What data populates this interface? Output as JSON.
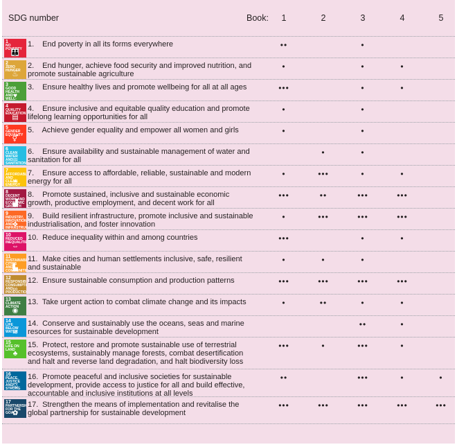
{
  "header": {
    "sdg_label": "SDG number",
    "book_label": "Book:",
    "books": [
      "1",
      "2",
      "3",
      "4",
      "5"
    ]
  },
  "dot_symbol": "•",
  "rows": [
    {
      "num": "1.",
      "text": "End poverty in all its forms everywhere",
      "tile_label": "NO POVERTY",
      "color": "#e5243b",
      "icon": "people-icon",
      "glyph": "👪",
      "counts": [
        2,
        0,
        1,
        0,
        0
      ]
    },
    {
      "num": "2.",
      "text": "End hunger, achieve food security and improved nutrition, and promote sustainable agriculture",
      "tile_label": "ZERO HUNGER",
      "color": "#dda63a",
      "icon": "bowl-icon",
      "glyph": "♨",
      "counts": [
        1,
        0,
        1,
        1,
        0
      ]
    },
    {
      "num": "3.",
      "text": "Ensure healthy lives and promote wellbeing for all at all ages",
      "tile_label": "GOOD HEALTH AND WELL-BEING",
      "color": "#4c9f38",
      "icon": "heartbeat-icon",
      "glyph": "♥",
      "counts": [
        3,
        0,
        1,
        1,
        0
      ]
    },
    {
      "num": "4.",
      "text": "Ensure inclusive and equitable quality education and promote lifelong learning opportunities for all",
      "tile_label": "QUALITY EDUCATION",
      "color": "#c5192d",
      "icon": "book-icon",
      "glyph": "▤",
      "counts": [
        1,
        0,
        1,
        0,
        0
      ]
    },
    {
      "num": "5.",
      "text": "Achieve gender equality and empower all women and girls",
      "tile_label": "GENDER EQUALITY",
      "color": "#ff3a21",
      "icon": "gender-icon",
      "glyph": "⚥",
      "counts": [
        1,
        0,
        1,
        0,
        0
      ]
    },
    {
      "num": "6.",
      "text": "Ensure availability and sustainable management of water and sanitation for all",
      "tile_label": "CLEAN WATER AND SANITATION",
      "color": "#26bde2",
      "icon": "water-icon",
      "glyph": "♒",
      "counts": [
        0,
        1,
        1,
        0,
        0
      ]
    },
    {
      "num": "7.",
      "text": "Ensure access to affordable, reliable, sustainable and modern energy for all",
      "tile_label": "AFFORDABLE AND CLEAN ENERGY",
      "color": "#fcc30b",
      "icon": "sun-icon",
      "glyph": "☀",
      "counts": [
        1,
        3,
        1,
        1,
        0
      ]
    },
    {
      "num": "8.",
      "text": "Promote sustained, inclusive and sustainable economic growth, productive employment, and decent work for all",
      "tile_label": "DECENT WORK AND ECONOMIC GROWTH",
      "color": "#a21942",
      "icon": "growth-icon",
      "glyph": "▟",
      "counts": [
        3,
        2,
        3,
        3,
        0
      ]
    },
    {
      "num": "9.",
      "text": "Build resilient infrastructure, promote inclusive and sustainable industrialisation, and foster innovation",
      "tile_label": "INDUSTRY, INNOVATION AND INFRASTRUCTURE",
      "color": "#fd6925",
      "icon": "cubes-icon",
      "glyph": "❖",
      "counts": [
        1,
        3,
        3,
        3,
        0
      ]
    },
    {
      "num": "10.",
      "text": "Reduce inequality within and among countries",
      "tile_label": "REDUCED INEQUALITIES",
      "color": "#dd1367",
      "icon": "equals-icon",
      "glyph": "⇔",
      "counts": [
        3,
        0,
        1,
        1,
        0
      ]
    },
    {
      "num": "11.",
      "text": "Make cities and human settlements inclusive, safe, resilient and sustainable",
      "tile_label": "SUSTAINABLE CITIES AND COMMUNITIES",
      "color": "#fd9d24",
      "icon": "city-icon",
      "glyph": "▙",
      "counts": [
        1,
        1,
        1,
        0,
        0
      ]
    },
    {
      "num": "12.",
      "text": "Ensure sustainable consumption and production patterns",
      "tile_label": "RESPONSIBLE CONSUMPTION AND PRODUCTION",
      "color": "#bf8b2e",
      "icon": "infinity-icon",
      "glyph": "∞",
      "counts": [
        3,
        3,
        3,
        3,
        0
      ]
    },
    {
      "num": "13.",
      "text": "Take urgent action to combat climate change and its impacts",
      "tile_label": "CLIMATE ACTION",
      "color": "#3f7e44",
      "icon": "eye-globe-icon",
      "glyph": "◉",
      "counts": [
        1,
        2,
        1,
        1,
        0
      ]
    },
    {
      "num": "14.",
      "text": "Conserve and sustainably use the oceans, seas and marine resources for sustainable development",
      "tile_label": "LIFE BELOW WATER",
      "color": "#0a97d9",
      "icon": "fish-icon",
      "glyph": "≋",
      "counts": [
        0,
        0,
        2,
        1,
        0
      ]
    },
    {
      "num": "15.",
      "text": "Protect, restore and promote sustainable use of terrestrial ecosystems, sustainably manage forests, combat desertification and halt and reverse land degradation, and halt biodiversity loss",
      "tile_label": "LIFE ON LAND",
      "color": "#56c02b",
      "icon": "tree-icon",
      "glyph": "♣",
      "counts": [
        3,
        1,
        3,
        1,
        0
      ]
    },
    {
      "num": "16.",
      "text": "Promote peaceful and inclusive societies for sustainable development, provide access to justice for all and build effective, accountable and inclusive institutions at all levels",
      "tile_label": "PEACE, JUSTICE AND STRONG INSTITUTIONS",
      "color": "#00689d",
      "icon": "dove-icon",
      "glyph": "⚖",
      "counts": [
        2,
        0,
        3,
        1,
        1
      ]
    },
    {
      "num": "17.",
      "text": "Strengthen the means of implementation and revitalise the global partnership for sustainable development",
      "tile_label": "PARTNERSHIPS FOR THE GOALS",
      "color": "#19486a",
      "icon": "partnership-icon",
      "glyph": "✿",
      "counts": [
        3,
        3,
        3,
        3,
        3
      ]
    }
  ]
}
